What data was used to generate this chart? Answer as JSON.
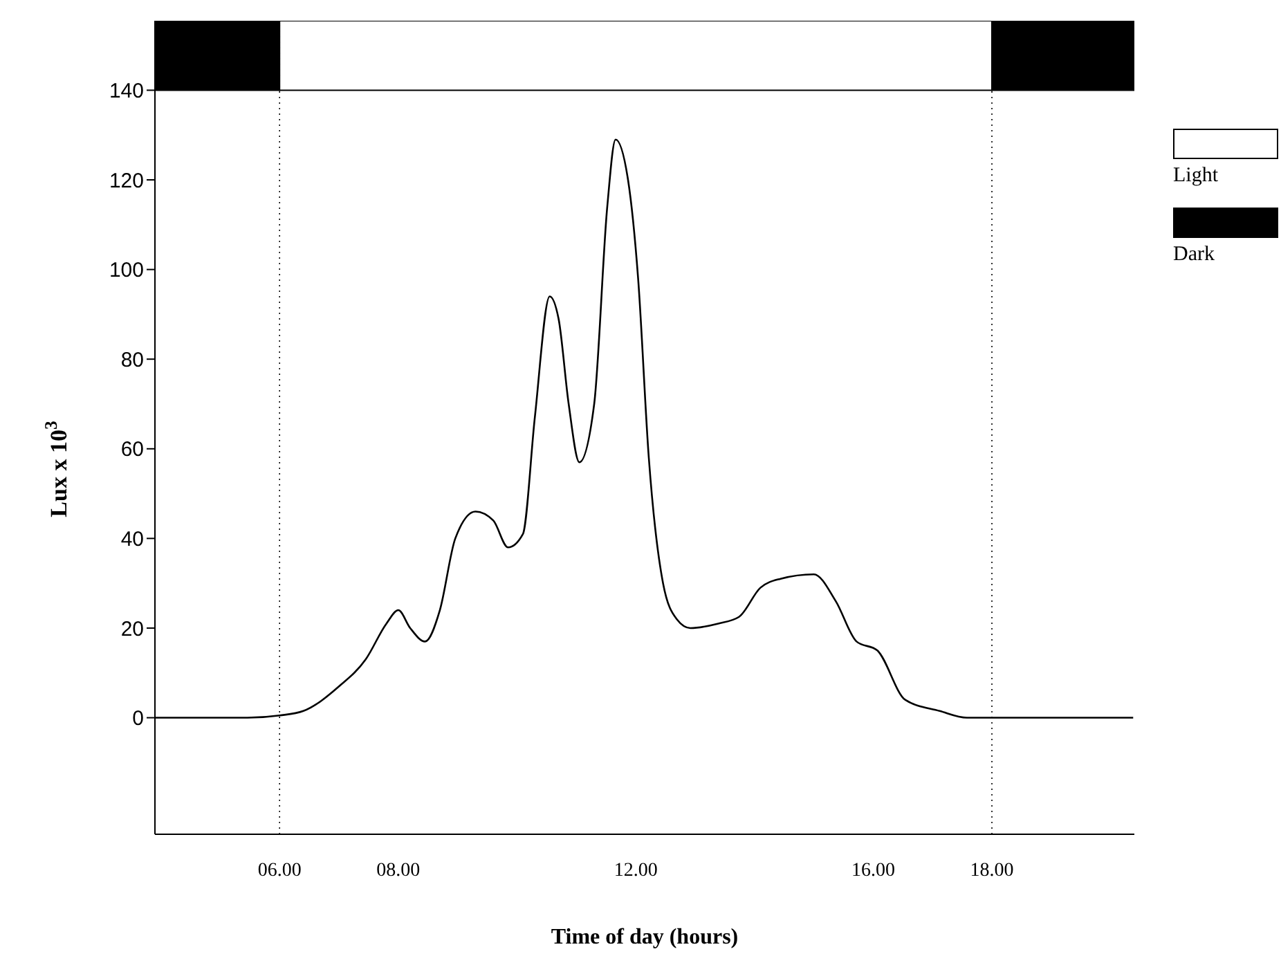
{
  "chart_data": {
    "type": "line",
    "xlabel": "Time of day (hours)",
    "ylabel": "Lux x 10$^{3}$",
    "x": [
      3.9,
      5.46,
      6,
      6.4,
      7,
      7.45,
      7.8,
      8.0,
      8.2,
      8.45,
      8.7,
      8.96,
      9.3,
      9.6,
      9.85,
      10.1,
      10.3,
      10.55,
      10.7,
      10.87,
      11.05,
      11.3,
      11.52,
      11.66,
      11.87,
      12.04,
      12.22,
      12.46,
      12.69,
      12.92,
      13.39,
      13.74,
      14.1,
      14.44,
      15.0,
      15.37,
      15.72,
      16.07,
      16.54,
      17.12,
      17.58,
      20.38
    ],
    "series": [
      {
        "color": "#000000",
        "values": [
          0,
          0,
          0.5,
          1.5,
          7,
          13,
          21,
          24,
          20,
          17,
          24,
          40,
          46,
          44,
          38,
          41,
          67,
          94,
          89,
          70,
          57,
          70,
          114,
          129,
          120,
          98,
          58,
          30,
          22,
          20,
          21,
          22.5,
          29,
          31,
          32,
          26,
          17,
          15,
          4,
          1.5,
          0,
          0
        ]
      }
    ],
    "xlim": [
      3.9,
      20.4
    ],
    "ylim": [
      -26,
      155.5
    ],
    "xticks": [
      {
        "value": 6,
        "label": "06.00"
      },
      {
        "value": 8,
        "label": "08.00"
      },
      {
        "value": 12,
        "label": "12.00"
      },
      {
        "value": 16,
        "label": "16.00"
      },
      {
        "value": 18,
        "label": "18.00"
      }
    ],
    "yticks": [
      0,
      20,
      40,
      60,
      80,
      100,
      120,
      140
    ],
    "ref_lines": [
      {
        "axis": "x",
        "value": 6,
        "line_style": "dotted"
      },
      {
        "axis": "x",
        "value": 18,
        "line_style": "dotted"
      }
    ],
    "bands": [
      {
        "axis": "x",
        "from": 3.9,
        "to": 6,
        "label": "Dark",
        "color": "#000000"
      },
      {
        "axis": "x",
        "from": 6,
        "to": 18,
        "label": "Light",
        "color": "#ffffff"
      },
      {
        "axis": "x",
        "from": 18,
        "to": 20.4,
        "color": "#000000"
      }
    ],
    "legend": "right",
    "marker": "none",
    "line_style": "solid"
  }
}
